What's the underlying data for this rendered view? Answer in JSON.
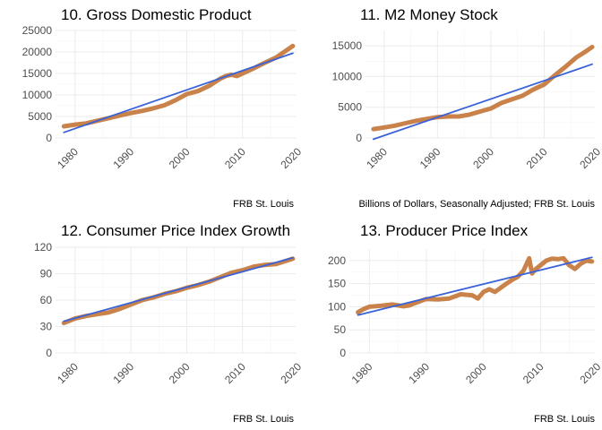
{
  "colors": {
    "actual": "#c8824a",
    "trend": "#3a62d9",
    "grid": "#ebebeb",
    "text": "#4d4d4d"
  },
  "chart_data": [
    {
      "type": "line",
      "title": "10. Gross Domestic Product",
      "caption": "FRB St. Louis",
      "xlabel": "",
      "ylabel": "",
      "xlim": [
        1976.5,
        2019.5
      ],
      "ylim": [
        0,
        25000
      ],
      "xticks": [
        1980,
        1990,
        2000,
        2010,
        2020
      ],
      "yticks": [
        0,
        5000,
        10000,
        15000,
        20000,
        25000
      ],
      "grid": true,
      "series": [
        {
          "role": "actual",
          "x": [
            1978,
            1980,
            1982,
            1984,
            1986,
            1988,
            1990,
            1992,
            1994,
            1996,
            1998,
            2000,
            2002,
            2004,
            2006,
            2007,
            2008,
            2009,
            2010,
            2012,
            2014,
            2016,
            2018,
            2019
          ],
          "y": [
            2700,
            3100,
            3400,
            4000,
            4600,
            5200,
            5800,
            6300,
            6900,
            7600,
            8800,
            10200,
            10900,
            12100,
            13800,
            14400,
            14700,
            14400,
            15000,
            16200,
            17500,
            18700,
            20500,
            21400
          ]
        },
        {
          "role": "trend",
          "x": [
            1978,
            2019
          ],
          "y": [
            1300,
            19700
          ]
        }
      ]
    },
    {
      "type": "line",
      "title": "11. M2 Money Stock",
      "caption": "Billions of Dollars, Seasonally Adjusted; FRB St. Louis",
      "xlabel": "",
      "ylabel": "",
      "xlim": [
        1976.5,
        2019.5
      ],
      "ylim": [
        0,
        17500
      ],
      "xticks": [
        1980,
        1990,
        2000,
        2010,
        2020
      ],
      "yticks": [
        0,
        5000,
        10000,
        15000
      ],
      "grid": true,
      "series": [
        {
          "role": "actual",
          "x": [
            1978,
            1980,
            1982,
            1984,
            1986,
            1988,
            1990,
            1992,
            1994,
            1996,
            1998,
            2000,
            2002,
            2004,
            2006,
            2008,
            2010,
            2012,
            2014,
            2016,
            2018,
            2019
          ],
          "y": [
            1450,
            1700,
            2000,
            2400,
            2800,
            3100,
            3400,
            3500,
            3500,
            3800,
            4300,
            4800,
            5700,
            6300,
            6900,
            7900,
            8700,
            10200,
            11600,
            13100,
            14200,
            14800
          ]
        },
        {
          "role": "trend",
          "x": [
            1978,
            2019
          ],
          "y": [
            -200,
            12000
          ]
        }
      ]
    },
    {
      "type": "line",
      "title": "12. Consumer Price Index Growth",
      "caption": "FRB St. Louis",
      "xlabel": "",
      "ylabel": "",
      "xlim": [
        1976.5,
        2019.5
      ],
      "ylim": [
        0,
        120
      ],
      "xticks": [
        1980,
        1990,
        2000,
        2010,
        2020
      ],
      "yticks": [
        0,
        30,
        60,
        90,
        120
      ],
      "grid": true,
      "series": [
        {
          "role": "actual",
          "x": [
            1978,
            1980,
            1982,
            1984,
            1986,
            1988,
            1990,
            1992,
            1994,
            1996,
            1998,
            2000,
            2002,
            2004,
            2006,
            2008,
            2010,
            2012,
            2014,
            2016,
            2018,
            2019
          ],
          "y": [
            34,
            39,
            42,
            44,
            46,
            50,
            55,
            60,
            63,
            67,
            70,
            74,
            77,
            81,
            86,
            91,
            94,
            98,
            100,
            101,
            105,
            107
          ]
        },
        {
          "role": "trend",
          "x": [
            1978,
            2019
          ],
          "y": [
            36,
            108
          ]
        }
      ]
    },
    {
      "type": "line",
      "title": "13. Producer Price Index",
      "caption": "FRB St. Louis",
      "xlabel": "",
      "ylabel": "",
      "xlim": [
        1976.5,
        2019.5
      ],
      "ylim": [
        0,
        225
      ],
      "xticks": [
        1980,
        1990,
        2000,
        2010,
        2020
      ],
      "yticks": [
        0,
        50,
        100,
        150,
        200
      ],
      "grid": true,
      "series": [
        {
          "role": "actual",
          "x": [
            1978,
            1979,
            1980,
            1982,
            1984,
            1986,
            1987,
            1988,
            1990,
            1992,
            1994,
            1996,
            1998,
            1999,
            2000,
            2001,
            2002,
            2004,
            2005,
            2006,
            2007,
            2008,
            2008.5,
            2009,
            2010,
            2011,
            2012,
            2013,
            2014,
            2015,
            2016,
            2017,
            2018,
            2019
          ],
          "y": [
            88,
            95,
            100,
            102,
            105,
            101,
            103,
            108,
            117,
            116,
            118,
            127,
            125,
            118,
            132,
            138,
            132,
            150,
            158,
            165,
            178,
            205,
            172,
            180,
            190,
            200,
            204,
            203,
            205,
            190,
            182,
            193,
            200,
            198
          ]
        },
        {
          "role": "trend",
          "x": [
            1978,
            2019
          ],
          "y": [
            82,
            207
          ]
        }
      ]
    }
  ]
}
